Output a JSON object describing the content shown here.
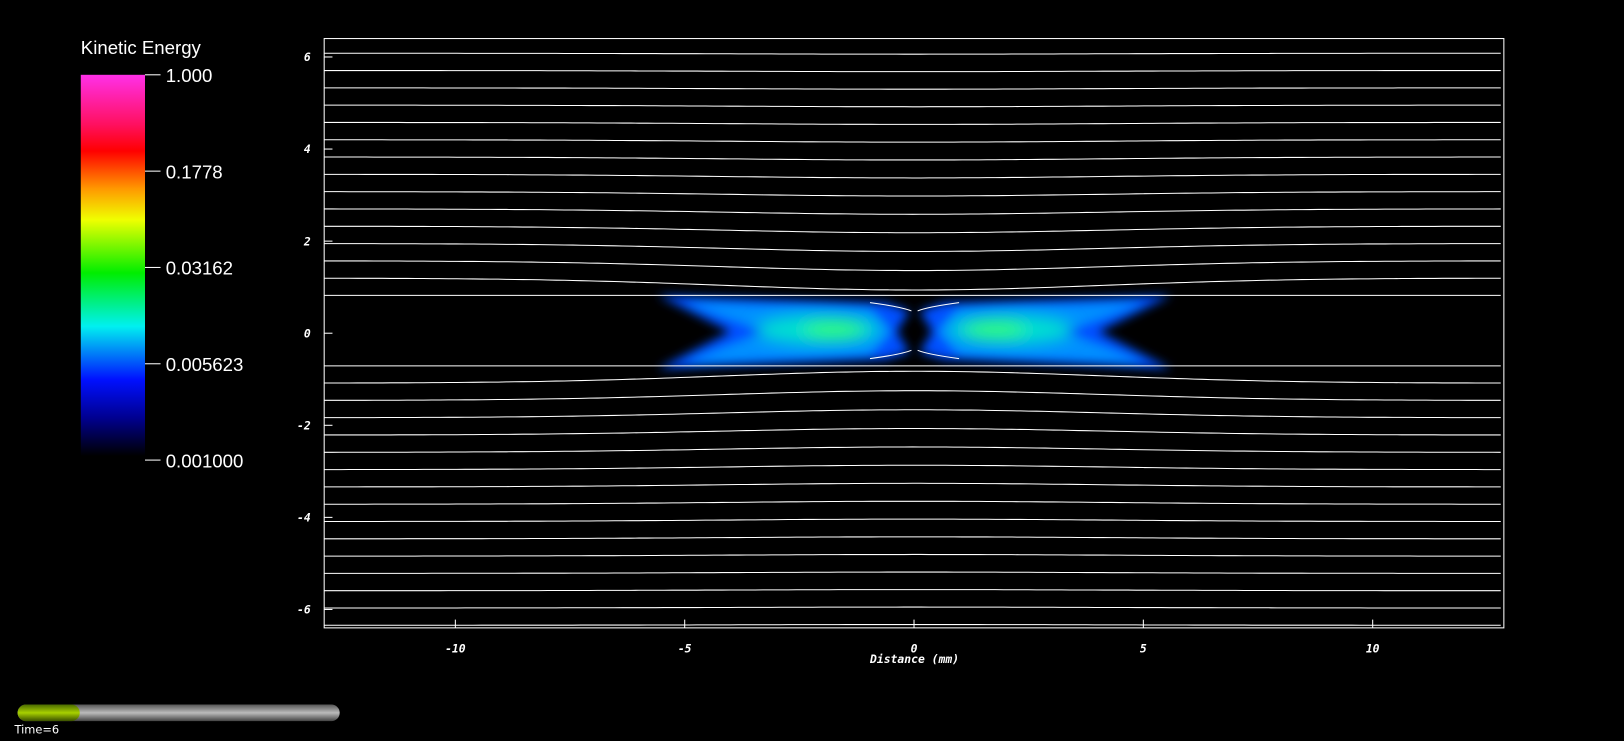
{
  "chart_data": {
    "type": "field",
    "xlabel": "Distance (mm)",
    "xlim": [
      -12.86,
      12.86
    ],
    "ylim": [
      -6.4,
      6.4
    ],
    "xticks": [
      -10,
      -5,
      0,
      5,
      10
    ],
    "yticks": [
      -6,
      -4,
      -2,
      0,
      2,
      4,
      6
    ],
    "colorbar": {
      "title": "Kinetic Energy",
      "log": true,
      "lim": [
        0.001,
        1
      ],
      "ticks": [
        {
          "value": 1,
          "label": "1.000"
        },
        0.1778,
        0.03162,
        0.005623,
        {
          "value": 0.001,
          "label": "0.001000"
        }
      ]
    },
    "time_label": "Time=6"
  }
}
